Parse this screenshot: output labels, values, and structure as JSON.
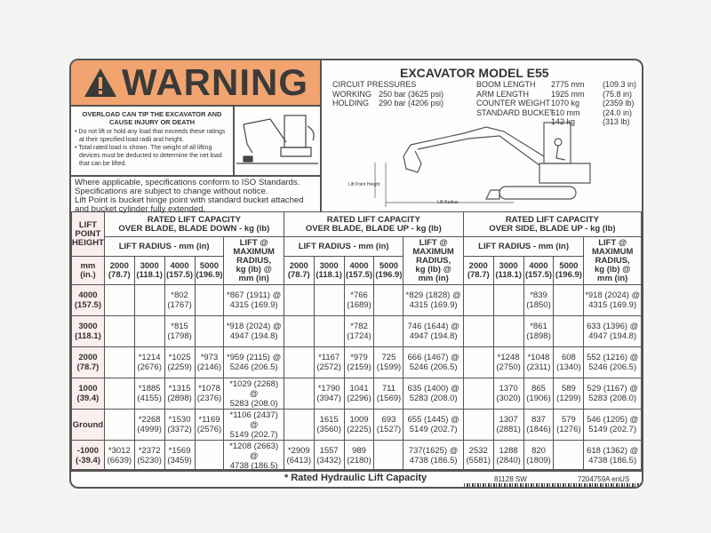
{
  "warning": {
    "title": "WARNING",
    "icon": "warning-triangle-icon",
    "color": "#f1a46f",
    "heading": "OVERLOAD CAN TIP THE EXCAVATOR AND CAUSE INJURY OR DEATH",
    "bullets": [
      "Do not lift or hold any load that exceeds these ratings at their specified load radii and height.",
      "Total rated load is shown. The weight of all lifting devices must be deducted to determine the net load that can be lifted."
    ]
  },
  "iso_note": [
    "Where applicable, specifications conform to ISO Standards.",
    "Specifications are subject to change without notice.",
    "Lift Point is bucket hinge point with standard bucket attached",
    "and bucket cylinder fully extended."
  ],
  "model": {
    "title": "EXCAVATOR MODEL E55",
    "pressures_label": "CIRCUIT PRESSURES",
    "pressures": [
      {
        "label": "WORKING",
        "value": "250 bar (3625 psi)"
      },
      {
        "label": "HOLDING",
        "value": "290 bar (4206 psi)"
      }
    ],
    "specs": [
      {
        "label": "BOOM LENGTH",
        "metric": "2775 mm",
        "imperial": "(109.3 in)"
      },
      {
        "label": "ARM LENGTH",
        "metric": "1925 mm",
        "imperial": "(75.8 in)"
      },
      {
        "label": "COUNTER WEIGHT",
        "metric": "1070 kg",
        "imperial": "(2359 lb)"
      },
      {
        "label": "STANDARD BUCKET",
        "metric": "610 mm",
        "imperial": "(24.0 in)"
      },
      {
        "label": "",
        "metric": "142 kg",
        "imperial": "(313 lb)"
      }
    ],
    "diagram_labels": {
      "height": "Lift Point Height",
      "radius": "Lift Radius"
    }
  },
  "table": {
    "lift_point_header": "LIFT\nPOINT\nHEIGHT",
    "unit_header": "mm\n(in.)",
    "groups": [
      "RATED LIFT CAPACITY\nOVER BLADE, BLADE DOWN - kg (lb)",
      "RATED LIFT CAPACITY\nOVER BLADE, BLADE UP - kg (lb)",
      "RATED LIFT CAPACITY\nOVER SIDE, BLADE UP - kg (lb)"
    ],
    "radius_header": "LIFT RADIUS - mm (in)",
    "max_header": "LIFT @\nMAXIMUM\nRADIUS,\nkg (lb) @\nmm (in)",
    "radii": [
      "2000\n(78.7)",
      "3000\n(118.1)",
      "4000\n(157.5)",
      "5000\n(196.9)"
    ],
    "rows": [
      {
        "height": "4000\n(157.5)",
        "cells": [
          "",
          "",
          "*802\n(1767)",
          "",
          "*867 (1911) @\n4315 (169.9)",
          "",
          "",
          "*766\n(1689)",
          "",
          "*829 (1828) @\n4315 (169.9)",
          "",
          "",
          "*839\n(1850)",
          "",
          "*918 (2024) @\n4315 (169.9)"
        ]
      },
      {
        "height": "3000\n(118.1)",
        "cells": [
          "",
          "",
          "*815\n(1798)",
          "",
          "*918 (2024) @\n4947 (194.8)",
          "",
          "",
          "*782\n(1724)",
          "",
          "746 (1644) @\n4947 (194.8)",
          "",
          "",
          "*861\n(1898)",
          "",
          "633 (1396) @\n4947 (194.8)"
        ]
      },
      {
        "height": "2000\n(78.7)",
        "cells": [
          "",
          "*1214\n(2676)",
          "*1025\n(2259)",
          "*973\n(2146)",
          "*959 (2115) @\n5246 (206.5)",
          "",
          "*1167\n(2572)",
          "*979\n(2159)",
          "725\n(1599)",
          "666 (1467) @\n5246 (206.5)",
          "",
          "*1248\n(2750)",
          "*1048\n(2311)",
          "608\n(1340)",
          "552 (1216) @\n5246 (206.5)"
        ]
      },
      {
        "height": "1000\n(39.4)",
        "cells": [
          "",
          "*1885\n(4155)",
          "*1315\n(2898)",
          "*1078\n(2376)",
          "*1029 (2268) @\n5283 (208.0)",
          "",
          "*1790\n(3947)",
          "1041\n(2296)",
          "711\n(1569)",
          "635 (1400) @\n5283 (208.0)",
          "",
          "1370\n(3020)",
          "865\n(1906)",
          "589\n(1299)",
          "529 (1167) @\n5283 (208.0)"
        ]
      },
      {
        "height": "Ground",
        "cells": [
          "",
          "*2268\n(4999)",
          "*1530\n(3372)",
          "*1169\n(2576)",
          "*1106 (2437) @\n5149 (202.7)",
          "",
          "1615\n(3560)",
          "1009\n(2225)",
          "693\n(1527)",
          "655 (1445) @\n5149 (202.7)",
          "",
          "1307\n(2881)",
          "837\n(1846)",
          "579\n(1276)",
          "546 (1205) @\n5149 (202.7)"
        ]
      },
      {
        "height": "-1000\n(-39.4)",
        "cells": [
          "*3012\n(6639)",
          "*2372\n(5230)",
          "*1569\n(3459)",
          "",
          "*1208 (2663) @\n4738 (186.5)",
          "*2909\n(6413)",
          "1557\n(3432)",
          "989\n(2180)",
          "",
          "737(1625) @\n4738 (186.5)",
          "2532\n(5581)",
          "1288\n(2840)",
          "820\n(1809)",
          "",
          "618 (1362) @\n4738 (186.5)"
        ]
      }
    ]
  },
  "footer": {
    "note": "* Rated Hydraulic Lift Capacity",
    "code1": "81128 SW",
    "code2": "7204759A enUS"
  }
}
